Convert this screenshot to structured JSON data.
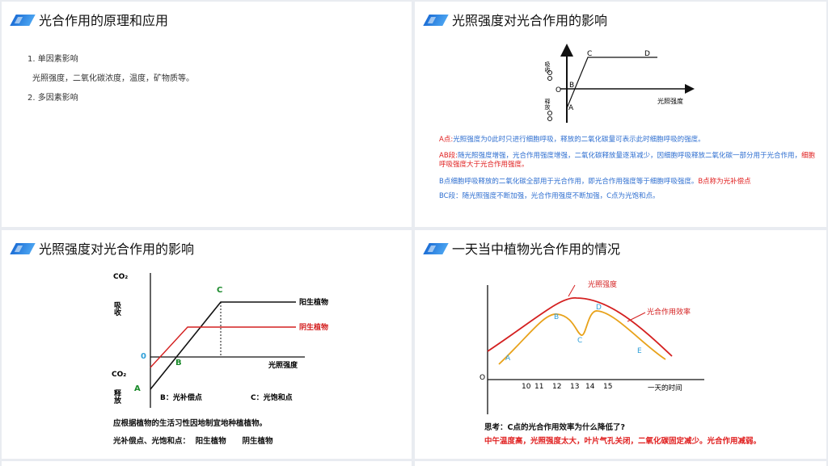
{
  "panel1": {
    "title": "光合作用的原理和应用",
    "item1": "1. 单因素影响",
    "item1_detail": "光照强度，二氧化碳浓度，温度，矿物质等。",
    "item2": "2. 多因素影响"
  },
  "panel2": {
    "title": "光照强度对光合作用的影响",
    "chart": {
      "y_up_label": "吸收",
      "y_down_label": "释放",
      "origin_label": "O",
      "x_label": "光照强度",
      "point_a": "A",
      "point_b": "B",
      "point_c": "C",
      "point_d": "D"
    },
    "notes": {
      "a_label": "A点:",
      "a_text": "光照强度为0此时只进行细胞呼吸，释放的二氧化碳量可表示此时细胞呼吸的强度。",
      "ab_label": "AB段:",
      "ab_text": "随光照强度增强，光合作用强度增强，二氧化碳释放量逐渐减少，因细胞呼吸释放二氧化碳一部分用于光合作用，",
      "ab_red": "细胞呼吸强度大于光合作用强度。",
      "b_text": "B点细胞呼吸释放的二氧化碳全部用于光合作用，即光合作用强度等于细胞呼吸强度。",
      "b_red": "B点称为光补偿点",
      "bc_text": "BC段：随光照强度不断加强，光合作用强度不断加强，C点为光饱和点。"
    }
  },
  "panel3": {
    "title": "光照强度对光合作用的影响",
    "chart": {
      "co2_top": "CO₂",
      "absorb": "吸收",
      "co2_bottom": "CO₂",
      "release": "释放",
      "zero": "0",
      "label_c": "C",
      "label_b": "B",
      "label_a": "A",
      "x_label": "光照强度",
      "sun_plant": "阳生植物",
      "shade_plant": "阴生植物",
      "b_caption": "B：光补偿点",
      "c_caption": "C：光饱和点"
    },
    "line1": "应根据植物的生活习性因地制宜地种植植物。",
    "line2": "光补偿点、光饱和点：  阳生植物      阴生植物"
  },
  "panel4": {
    "title": "一天当中植物光合作用的情况",
    "chart": {
      "series_light": "光照强度",
      "series_rate": "光合作用效率",
      "origin": "O",
      "x_label": "一天的时间",
      "x_ticks": [
        "10",
        "11",
        "12",
        "13",
        "14",
        "15"
      ],
      "points": [
        "A",
        "B",
        "C",
        "D",
        "E"
      ]
    },
    "question": "思考：C点的光合作用效率为什么降低了?",
    "answer": "中午温度高，光照强度太大，叶片气孔关闭，二氧化碳固定减少。光合作用减弱。"
  },
  "colors": {
    "accent_blue": "#1d6fd6",
    "note_blue": "#2f6fd0",
    "red": "#e02020",
    "orange": "#e8a21a",
    "green": "#1a8a2a"
  }
}
